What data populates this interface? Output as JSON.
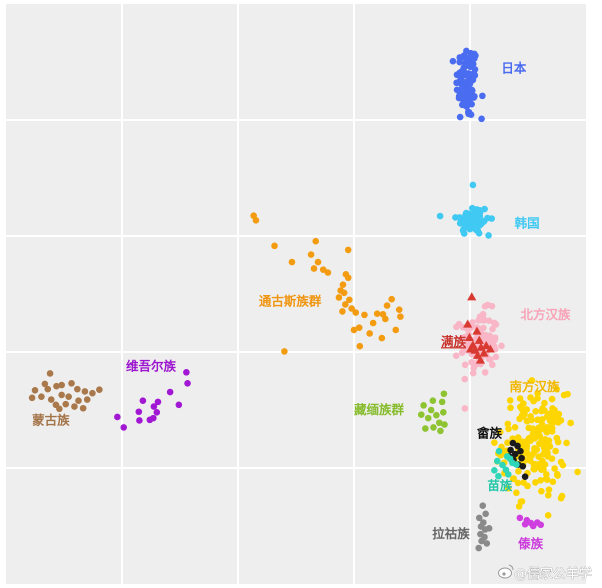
{
  "chart_data": {
    "type": "scatter",
    "title": "",
    "xlabel": "",
    "ylabel": "",
    "xlim": [
      0,
      100
    ],
    "ylim": [
      0,
      100
    ],
    "grid": true,
    "legend": "none",
    "background_color": "#eeeeee",
    "grid_color": "#ffffff",
    "series": [
      {
        "name": "日本",
        "color": "#4a6cf0",
        "label_color": "#4a6cf0",
        "marker": "circle",
        "label_pos": {
          "x": 85.4,
          "y": 88.2
        },
        "center": {
          "x": 79.5,
          "y": 86.5
        },
        "spread": {
          "x": 0.95,
          "y": 3.2
        },
        "n": 90,
        "extra": [
          {
            "x": 79.2,
            "y": 90.8
          },
          {
            "x": 82.0,
            "y": 80.2
          },
          {
            "x": 78.3,
            "y": 80.5
          }
        ]
      },
      {
        "name": "韩国",
        "color": "#3fc9f3",
        "label_color": "#3fc9f3",
        "marker": "circle",
        "label_pos": {
          "x": 87.7,
          "y": 61.5
        },
        "center": {
          "x": 80.5,
          "y": 62.8
        },
        "spread": {
          "x": 1.4,
          "y": 1.35
        },
        "n": 70,
        "extra": [
          {
            "x": 80.5,
            "y": 68.8
          },
          {
            "x": 78.2,
            "y": 63.2
          },
          {
            "x": 83.2,
            "y": 60.1
          }
        ]
      },
      {
        "name": "北方汉族",
        "color": "#f8b6c6",
        "label_color": "#f8a3b7",
        "marker": "circle",
        "label_pos": {
          "x": 88.7,
          "y": 45.7
        },
        "center": {
          "x": 81.6,
          "y": 41.6
        },
        "spread": {
          "x": 1.6,
          "y": 2.7
        },
        "n": 110,
        "extra": []
      },
      {
        "name": "满族",
        "color": "#d83a32",
        "label_color": "#c9312b",
        "marker": "triangle",
        "underline": true,
        "label_pos": {
          "x": 75.0,
          "y": 41.0
        },
        "points": [
          {
            "x": 80.3,
            "y": 49.5
          },
          {
            "x": 79.6,
            "y": 44.8
          },
          {
            "x": 81.2,
            "y": 43.6
          },
          {
            "x": 79.9,
            "y": 42.5
          },
          {
            "x": 81.6,
            "y": 42.0
          },
          {
            "x": 80.5,
            "y": 41.2
          },
          {
            "x": 81.9,
            "y": 40.8
          },
          {
            "x": 82.8,
            "y": 41.1
          },
          {
            "x": 80.9,
            "y": 40.3
          },
          {
            "x": 82.4,
            "y": 39.8
          },
          {
            "x": 81.3,
            "y": 39.4
          },
          {
            "x": 83.5,
            "y": 40.5
          },
          {
            "x": 80.1,
            "y": 40.5
          },
          {
            "x": 81.8,
            "y": 38.6
          }
        ]
      },
      {
        "name": "南方汉族",
        "color": "#fdd500",
        "label_color": "#f2b800",
        "marker": "circle",
        "label_pos": {
          "x": 86.8,
          "y": 33.3
        },
        "center": {
          "x": 91.0,
          "y": 24.2
        },
        "spread": {
          "x": 2.7,
          "y": 4.3
        },
        "n": 180,
        "extra": [
          {
            "x": 95.7,
            "y": 14.8
          },
          {
            "x": 92.3,
            "y": 16.0
          },
          {
            "x": 93.5,
            "y": 15.3
          }
        ]
      },
      {
        "name": "畲族",
        "color": "#1a1a1a",
        "label_color": "#111111",
        "marker": "circle",
        "label_pos": {
          "x": 81.2,
          "y": 25.3
        },
        "points": [
          {
            "x": 87.4,
            "y": 24.3
          },
          {
            "x": 88.2,
            "y": 23.8
          },
          {
            "x": 87.0,
            "y": 23.1
          },
          {
            "x": 88.7,
            "y": 22.9
          },
          {
            "x": 87.8,
            "y": 22.4
          },
          {
            "x": 88.9,
            "y": 21.7
          },
          {
            "x": 87.5,
            "y": 21.4
          },
          {
            "x": 88.3,
            "y": 20.6
          },
          {
            "x": 89.1,
            "y": 20.3
          },
          {
            "x": 86.8,
            "y": 22.0
          },
          {
            "x": 89.5,
            "y": 18.5
          }
        ]
      },
      {
        "name": "苗族",
        "color": "#2fd7b8",
        "label_color": "#22c7a8",
        "marker": "circle",
        "label_pos": {
          "x": 83.0,
          "y": 16.2
        },
        "points": [
          {
            "x": 85.0,
            "y": 22.9
          },
          {
            "x": 86.4,
            "y": 22.0
          },
          {
            "x": 84.7,
            "y": 21.2
          },
          {
            "x": 86.9,
            "y": 21.6
          },
          {
            "x": 85.6,
            "y": 20.5
          },
          {
            "x": 87.3,
            "y": 20.9
          },
          {
            "x": 84.2,
            "y": 19.6
          },
          {
            "x": 86.2,
            "y": 19.7
          },
          {
            "x": 84.9,
            "y": 18.6
          },
          {
            "x": 86.6,
            "y": 18.9
          },
          {
            "x": 88.0,
            "y": 20.6
          }
        ]
      },
      {
        "name": "拉祜族",
        "color": "#8a8a8a",
        "label_color": "#666666",
        "marker": "circle",
        "label_pos": {
          "x": 73.5,
          "y": 7.9
        },
        "points": [
          {
            "x": 82.2,
            "y": 13.5
          },
          {
            "x": 82.7,
            "y": 12.1
          },
          {
            "x": 81.6,
            "y": 11.4
          },
          {
            "x": 82.3,
            "y": 10.6
          },
          {
            "x": 81.9,
            "y": 9.9
          },
          {
            "x": 82.6,
            "y": 9.4
          },
          {
            "x": 81.8,
            "y": 8.6
          },
          {
            "x": 82.5,
            "y": 8.1
          },
          {
            "x": 82.0,
            "y": 7.4
          },
          {
            "x": 82.9,
            "y": 7.0
          },
          {
            "x": 83.3,
            "y": 9.6
          },
          {
            "x": 81.5,
            "y": 6.2
          }
        ]
      },
      {
        "name": "傣族",
        "color": "#cf3fe0",
        "label_color": "#cc3bdc",
        "marker": "circle",
        "label_pos": {
          "x": 88.3,
          "y": 6.2
        },
        "points": [
          {
            "x": 88.6,
            "y": 11.4
          },
          {
            "x": 89.8,
            "y": 11.0
          },
          {
            "x": 90.5,
            "y": 10.5
          },
          {
            "x": 91.6,
            "y": 10.6
          },
          {
            "x": 90.9,
            "y": 10.0
          },
          {
            "x": 89.5,
            "y": 10.3
          },
          {
            "x": 92.2,
            "y": 10.2
          }
        ]
      },
      {
        "name": "藏缅族群",
        "color": "#8ec331",
        "label_color": "#86bc2c",
        "marker": "circle",
        "label_pos": {
          "x": 60.0,
          "y": 29.3
        },
        "points": [
          {
            "x": 75.5,
            "y": 32.8
          },
          {
            "x": 75.2,
            "y": 31.4
          },
          {
            "x": 73.6,
            "y": 31.6
          },
          {
            "x": 72.0,
            "y": 30.8
          },
          {
            "x": 73.3,
            "y": 30.0
          },
          {
            "x": 75.4,
            "y": 29.6
          },
          {
            "x": 74.2,
            "y": 29.1
          },
          {
            "x": 72.8,
            "y": 28.6
          },
          {
            "x": 74.7,
            "y": 27.8
          },
          {
            "x": 73.7,
            "y": 27.0
          },
          {
            "x": 72.3,
            "y": 26.8
          },
          {
            "x": 75.6,
            "y": 27.5
          },
          {
            "x": 71.6,
            "y": 29.2
          },
          {
            "x": 74.9,
            "y": 26.4
          }
        ]
      },
      {
        "name": "通古斯族群",
        "color": "#f39c12",
        "label_color": "#f0950f",
        "marker": "circle",
        "label_pos": {
          "x": 43.6,
          "y": 48.0
        },
        "points": [
          {
            "x": 42.7,
            "y": 63.5
          },
          {
            "x": 43.1,
            "y": 62.7
          },
          {
            "x": 46.3,
            "y": 58.3
          },
          {
            "x": 53.4,
            "y": 59.1
          },
          {
            "x": 49.3,
            "y": 55.5
          },
          {
            "x": 52.6,
            "y": 56.8
          },
          {
            "x": 53.8,
            "y": 55.5
          },
          {
            "x": 53.1,
            "y": 54.4
          },
          {
            "x": 54.7,
            "y": 54.2
          },
          {
            "x": 55.5,
            "y": 53.7
          },
          {
            "x": 58.6,
            "y": 53.4
          },
          {
            "x": 59.0,
            "y": 52.8
          },
          {
            "x": 58.1,
            "y": 51.6
          },
          {
            "x": 57.7,
            "y": 50.6
          },
          {
            "x": 58.3,
            "y": 50.2
          },
          {
            "x": 57.4,
            "y": 49.4
          },
          {
            "x": 59.2,
            "y": 49.0
          },
          {
            "x": 58.5,
            "y": 48.2
          },
          {
            "x": 59.6,
            "y": 47.5
          },
          {
            "x": 58.0,
            "y": 47.0
          },
          {
            "x": 60.3,
            "y": 46.8
          },
          {
            "x": 66.5,
            "y": 49.1
          },
          {
            "x": 65.7,
            "y": 48.0
          },
          {
            "x": 64.0,
            "y": 46.6
          },
          {
            "x": 65.0,
            "y": 46.5
          },
          {
            "x": 65.4,
            "y": 45.7
          },
          {
            "x": 63.3,
            "y": 45.0
          },
          {
            "x": 67.8,
            "y": 47.3
          },
          {
            "x": 68.0,
            "y": 46.1
          },
          {
            "x": 61.8,
            "y": 46.4
          },
          {
            "x": 60.9,
            "y": 44.2
          },
          {
            "x": 62.7,
            "y": 43.2
          },
          {
            "x": 67.2,
            "y": 43.8
          },
          {
            "x": 60.0,
            "y": 43.8
          },
          {
            "x": 64.8,
            "y": 42.4
          },
          {
            "x": 61.0,
            "y": 41.0
          },
          {
            "x": 48.0,
            "y": 40.1
          },
          {
            "x": 59.0,
            "y": 57.6
          }
        ]
      },
      {
        "name": "维吾尔族",
        "color": "#a117d4",
        "label_color": "#9d16cf",
        "marker": "circle",
        "label_pos": {
          "x": 20.7,
          "y": 36.8
        },
        "points": [
          {
            "x": 31.1,
            "y": 36.5
          },
          {
            "x": 31.3,
            "y": 34.6
          },
          {
            "x": 28.3,
            "y": 33.1
          },
          {
            "x": 29.8,
            "y": 30.9
          },
          {
            "x": 23.6,
            "y": 31.6
          },
          {
            "x": 25.5,
            "y": 30.6
          },
          {
            "x": 26.0,
            "y": 29.6
          },
          {
            "x": 22.9,
            "y": 29.7
          },
          {
            "x": 24.8,
            "y": 28.3
          },
          {
            "x": 25.4,
            "y": 28.6
          },
          {
            "x": 23.0,
            "y": 28.2
          },
          {
            "x": 19.2,
            "y": 28.8
          },
          {
            "x": 20.3,
            "y": 27.0
          },
          {
            "x": 26.2,
            "y": 31.4
          }
        ]
      },
      {
        "name": "蒙古族",
        "color": "#a9784b",
        "label_color": "#a47449",
        "marker": "circle",
        "label_pos": {
          "x": 4.5,
          "y": 27.5
        },
        "points": [
          {
            "x": 7.6,
            "y": 36.3
          },
          {
            "x": 6.7,
            "y": 34.5
          },
          {
            "x": 5.0,
            "y": 33.4
          },
          {
            "x": 7.2,
            "y": 33.6
          },
          {
            "x": 8.7,
            "y": 34.1
          },
          {
            "x": 9.6,
            "y": 34.3
          },
          {
            "x": 11.3,
            "y": 34.6
          },
          {
            "x": 12.3,
            "y": 33.6
          },
          {
            "x": 13.6,
            "y": 33.2
          },
          {
            "x": 14.9,
            "y": 32.9
          },
          {
            "x": 16.1,
            "y": 33.5
          },
          {
            "x": 4.5,
            "y": 32.1
          },
          {
            "x": 6.1,
            "y": 32.3
          },
          {
            "x": 7.8,
            "y": 31.8
          },
          {
            "x": 9.6,
            "y": 32.6
          },
          {
            "x": 10.8,
            "y": 32.3
          },
          {
            "x": 12.5,
            "y": 31.6
          },
          {
            "x": 14.0,
            "y": 31.8
          },
          {
            "x": 8.6,
            "y": 30.9
          },
          {
            "x": 10.3,
            "y": 31.0
          },
          {
            "x": 11.8,
            "y": 30.6
          },
          {
            "x": 13.3,
            "y": 30.3
          },
          {
            "x": 9.2,
            "y": 30.2
          }
        ]
      }
    ]
  },
  "watermark": "@儒家公羊学"
}
